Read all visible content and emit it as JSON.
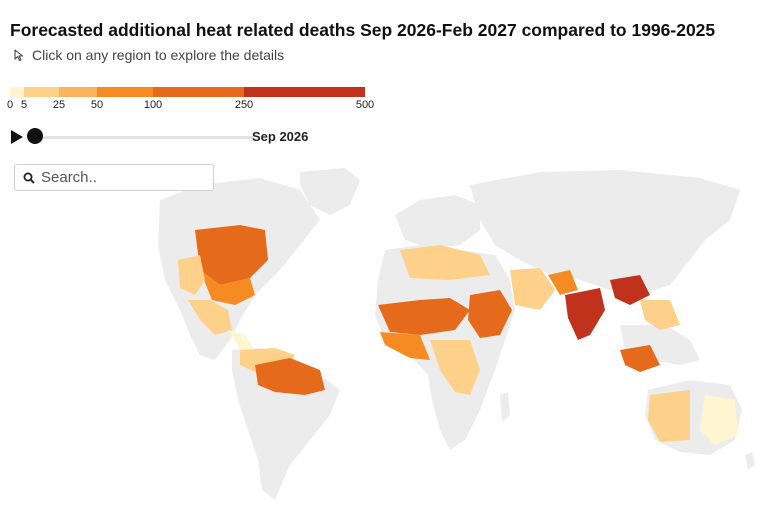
{
  "title": "Forecasted additional heat related deaths Sep 2026-Feb 2027 compared to 1996-2025",
  "hint": {
    "text": "Click on any region to explore the details",
    "icon": "cursor-arrow-icon"
  },
  "legend": {
    "stops": [
      {
        "label": "0",
        "color": "#fff5d1",
        "value": 0
      },
      {
        "label": "5",
        "color": "#fdd18a",
        "value": 5
      },
      {
        "label": "25",
        "color": "#fbb45c",
        "value": 25
      },
      {
        "label": "50",
        "color": "#f58b22",
        "value": 50
      },
      {
        "label": "100",
        "color": "#e56a1b",
        "value": 100
      },
      {
        "label": "250",
        "color": "#c0321b",
        "value": 250
      },
      {
        "label": "500",
        "color": "#c0321b",
        "value": 500
      }
    ]
  },
  "timeline": {
    "current": "Sep 2026",
    "progress": 0.0,
    "play_icon": "play-icon"
  },
  "search": {
    "placeholder": "Search..",
    "value": "",
    "icon": "search-icon"
  },
  "map": {
    "land_color": "#ececec",
    "regions": [
      {
        "name": "North America",
        "level": "none"
      },
      {
        "name": "Greenland",
        "level": "none"
      },
      {
        "name": "United States Central",
        "level": "high"
      },
      {
        "name": "United States South",
        "level": "medium"
      },
      {
        "name": "United States West",
        "level": "low"
      },
      {
        "name": "Mexico",
        "level": "low"
      },
      {
        "name": "Central America",
        "level": "minimal"
      },
      {
        "name": "South America",
        "level": "none"
      },
      {
        "name": "Brazil North",
        "level": "high"
      },
      {
        "name": "Colombia Venezuela",
        "level": "low"
      },
      {
        "name": "Europe",
        "level": "none"
      },
      {
        "name": "Russia",
        "level": "none"
      },
      {
        "name": "North Africa",
        "level": "low"
      },
      {
        "name": "Sahel",
        "level": "high"
      },
      {
        "name": "Sudan",
        "level": "high"
      },
      {
        "name": "West Africa",
        "level": "medium"
      },
      {
        "name": "Central Africa",
        "level": "low"
      },
      {
        "name": "Southern Africa",
        "level": "none"
      },
      {
        "name": "Arabian Peninsula",
        "level": "low"
      },
      {
        "name": "India",
        "level": "very-high"
      },
      {
        "name": "Pakistan",
        "level": "medium"
      },
      {
        "name": "China",
        "level": "none"
      },
      {
        "name": "Myanmar",
        "level": "very-high"
      },
      {
        "name": "Southeast Asia",
        "level": "low"
      },
      {
        "name": "Indonesia",
        "level": "high"
      },
      {
        "name": "Australia West",
        "level": "low"
      },
      {
        "name": "Australia East",
        "level": "minimal"
      }
    ]
  }
}
